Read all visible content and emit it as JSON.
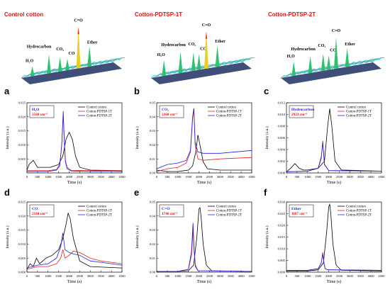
{
  "top_panels": [
    {
      "title": "Control cotton",
      "peaks": [
        "H₂O",
        "Hydrocarbon",
        "CO₂",
        "CO",
        "C=O",
        "Ether"
      ]
    },
    {
      "title": "Cotton-PDTSP-1T",
      "peaks": [
        "H₂O",
        "Hydrocarbon",
        "CO₂",
        "CO",
        "C=O",
        "Ether"
      ]
    },
    {
      "title": "Cotton-PDTSP-2T",
      "peaks": [
        "H₂O",
        "Hydrocarbon",
        "CO₂",
        "CO",
        "C=O",
        "Ether"
      ]
    }
  ],
  "panel_letters": [
    "a",
    "b",
    "c",
    "d",
    "e",
    "f"
  ],
  "colors": {
    "control": "#000000",
    "pdtsp1t": "#e02020",
    "pdtsp2t": "#1e1ee0",
    "title_red": "#e01010"
  },
  "chart_data": [
    {
      "type": "line",
      "annotation": "H₂O",
      "annotation2": "3568 cm⁻¹",
      "xlabel": "Time (s)",
      "ylabel": "Intensity (a.u.)",
      "xlim": [
        0,
        4500
      ],
      "ylim": [
        0,
        0.025
      ],
      "xticks": [
        0,
        500,
        1000,
        1500,
        2000,
        2500,
        3000,
        3500,
        4000,
        4500
      ],
      "yticks": [
        0.005,
        0.01,
        0.015,
        0.02,
        0.025
      ],
      "yticklabels": [
        "0.005",
        "0.010",
        "0.015",
        "0.020",
        "0.025"
      ],
      "series": [
        {
          "name": "Control cotton",
          "x": [
            0,
            100,
            300,
            500,
            700,
            900,
            1100,
            1300,
            1500,
            1700,
            1850,
            2000,
            2150,
            2300,
            2500,
            3000,
            4500
          ],
          "y": [
            0.001,
            0.003,
            0.0045,
            0.002,
            0.002,
            0.002,
            0.002,
            0.0025,
            0.003,
            0.006,
            0.012,
            0.0145,
            0.012,
            0.006,
            0.002,
            0.001,
            0.0008
          ]
        },
        {
          "name": "Cotton-PDTSP-1T",
          "x": [
            0,
            1000,
            1400,
            1550,
            1650,
            1720,
            1770,
            1820,
            1900,
            2100,
            3000,
            4500
          ],
          "y": [
            0.0008,
            0.0008,
            0.0012,
            0.003,
            0.01,
            0.021,
            0.012,
            0.0045,
            0.002,
            0.0009,
            0.0008,
            0.0008
          ]
        },
        {
          "name": "Cotton-PDTSP-2T",
          "x": [
            0,
            1000,
            1400,
            1550,
            1650,
            1720,
            1770,
            1820,
            1900,
            2100,
            3000,
            4500
          ],
          "y": [
            0.0005,
            0.0005,
            0.001,
            0.0025,
            0.01,
            0.022,
            0.011,
            0.004,
            0.0015,
            0.0007,
            0.0005,
            0.0005
          ]
        }
      ]
    },
    {
      "type": "line",
      "annotation": "CO₂",
      "annotation2": "2360 cm⁻¹",
      "xlabel": "Time (s)",
      "ylabel": "Intensity (a.u.)",
      "xlim": [
        0,
        4500
      ],
      "ylim": [
        0,
        0.05
      ],
      "xticks": [
        0,
        500,
        1000,
        1500,
        2000,
        2500,
        3000,
        3500,
        4000,
        4500
      ],
      "yticks": [
        0.0,
        0.01,
        0.02,
        0.03,
        0.04,
        0.05
      ],
      "yticklabels": [
        "0.00",
        "0.01",
        "0.02",
        "0.03",
        "0.04",
        "0.05"
      ],
      "series": [
        {
          "name": "Control cotton",
          "x": [
            0,
            500,
            1000,
            1500,
            1700,
            1850,
            1950,
            2050,
            2200,
            2400,
            3000,
            4500
          ],
          "y": [
            0.002,
            0.001,
            0.001,
            0.002,
            0.005,
            0.015,
            0.027,
            0.02,
            0.008,
            0.003,
            0.002,
            0.002
          ]
        },
        {
          "name": "Cotton-PDTSP-1T",
          "x": [
            0,
            500,
            1000,
            1400,
            1600,
            1700,
            1760,
            1820,
            1950,
            2200,
            3000,
            4500
          ],
          "y": [
            0.001,
            0.003,
            0.004,
            0.007,
            0.015,
            0.038,
            0.046,
            0.02,
            0.01,
            0.009,
            0.01,
            0.011
          ]
        },
        {
          "name": "Cotton-PDTSP-2T",
          "x": [
            0,
            500,
            1000,
            1400,
            1600,
            1700,
            1760,
            1820,
            1950,
            2200,
            3000,
            4500
          ],
          "y": [
            0.003,
            0.006,
            0.007,
            0.009,
            0.016,
            0.04,
            0.046,
            0.022,
            0.015,
            0.014,
            0.014,
            0.016
          ]
        }
      ]
    },
    {
      "type": "line",
      "annotation": "Hydrocarbon",
      "annotation2": "2923 cm⁻¹",
      "xlabel": "Time (s)",
      "ylabel": "Intensity (a.u.)",
      "xlim": [
        0,
        4500
      ],
      "ylim": [
        0,
        0.012
      ],
      "xticks": [
        0,
        500,
        1000,
        1500,
        2000,
        2500,
        3000,
        3500,
        4000,
        4500
      ],
      "yticks": [
        0.0,
        0.002,
        0.004,
        0.006,
        0.008,
        0.01,
        0.012
      ],
      "yticklabels": [
        "0.000",
        "0.002",
        "0.004",
        "0.006",
        "0.008",
        "0.010",
        "0.012"
      ],
      "series": [
        {
          "name": "Control cotton",
          "x": [
            0,
            200,
            400,
            600,
            800,
            1000,
            1500,
            1800,
            1950,
            2050,
            2150,
            2300,
            2600,
            4500
          ],
          "y": [
            0.0002,
            0.0008,
            0.0016,
            0.0008,
            0.0005,
            0.0005,
            0.0008,
            0.002,
            0.008,
            0.011,
            0.008,
            0.002,
            0.0005,
            0.0003
          ]
        },
        {
          "name": "Cotton-PDTSP-1T",
          "x": [
            0,
            1000,
            1500,
            1650,
            1720,
            1800,
            2000,
            4500
          ],
          "y": [
            0.0002,
            0.0003,
            0.0008,
            0.0025,
            0.0055,
            0.0015,
            0.0004,
            0.0003
          ]
        },
        {
          "name": "Cotton-PDTSP-2T",
          "x": [
            0,
            1000,
            1500,
            1650,
            1720,
            1800,
            2000,
            4500
          ],
          "y": [
            0.0002,
            0.0003,
            0.0008,
            0.0028,
            0.0052,
            0.0014,
            0.0004,
            0.0003
          ]
        }
      ]
    },
    {
      "type": "line",
      "annotation": "CO",
      "annotation2": "2184 cm⁻¹",
      "xlabel": "Time (s)",
      "ylabel": "Intensity (a.u.)",
      "xlim": [
        0,
        4500
      ],
      "ylim": [
        0,
        0.025
      ],
      "xticks": [
        0,
        500,
        1000,
        1500,
        2000,
        2500,
        3000,
        3500,
        4000,
        4500
      ],
      "yticks": [
        0.0,
        0.005,
        0.01,
        0.015,
        0.02,
        0.025
      ],
      "yticklabels": [
        "0.000",
        "0.005",
        "0.010",
        "0.015",
        "0.020",
        "0.025"
      ],
      "series": [
        {
          "name": "Control cotton",
          "x": [
            0,
            150,
            300,
            450,
            600,
            900,
            1200,
            1500,
            1700,
            1850,
            1950,
            2050,
            2200,
            2500,
            3000,
            4500
          ],
          "y": [
            0.001,
            0.003,
            0.002,
            0.005,
            0.003,
            0.005,
            0.006,
            0.008,
            0.012,
            0.017,
            0.021,
            0.019,
            0.012,
            0.004,
            0.002,
            0.0015
          ]
        },
        {
          "name": "Cotton-PDTSP-1T",
          "x": [
            0,
            500,
            1000,
            1400,
            1600,
            1700,
            1800,
            2000,
            2200,
            2500,
            3000,
            3500,
            4000,
            4500
          ],
          "y": [
            0.001,
            0.002,
            0.002,
            0.003,
            0.005,
            0.008,
            0.005,
            0.006,
            0.0075,
            0.007,
            0.005,
            0.004,
            0.0035,
            0.003
          ]
        },
        {
          "name": "Cotton-PDTSP-2T",
          "x": [
            0,
            500,
            1000,
            1400,
            1600,
            1700,
            1800,
            2000,
            2200,
            2500,
            3000,
            3500,
            4000,
            4500
          ],
          "y": [
            0.0015,
            0.0025,
            0.003,
            0.005,
            0.009,
            0.014,
            0.008,
            0.007,
            0.0065,
            0.006,
            0.004,
            0.0035,
            0.003,
            0.0025
          ]
        }
      ]
    },
    {
      "type": "line",
      "annotation": "C=O",
      "annotation2": "1746 cm⁻¹",
      "xlabel": "Time (s)",
      "ylabel": "Intensity (a.u.)",
      "xlim": [
        0,
        4500
      ],
      "ylim": [
        0,
        0.05
      ],
      "xticks": [
        0,
        500,
        1000,
        1500,
        2000,
        2500,
        3000,
        3500,
        4000,
        4500
      ],
      "yticks": [
        0.0,
        0.01,
        0.02,
        0.03,
        0.04,
        0.05
      ],
      "yticklabels": [
        "0.00",
        "0.01",
        "0.02",
        "0.03",
        "0.04",
        "0.05"
      ],
      "series": [
        {
          "name": "Control cotton",
          "x": [
            0,
            1000,
            1500,
            1750,
            1900,
            2000,
            2050,
            2100,
            2200,
            2350,
            2600,
            4500
          ],
          "y": [
            0.0005,
            0.0005,
            0.001,
            0.005,
            0.025,
            0.045,
            0.046,
            0.04,
            0.02,
            0.005,
            0.001,
            0.0005
          ]
        },
        {
          "name": "Cotton-PDTSP-1T",
          "x": [
            0,
            1000,
            1500,
            1650,
            1720,
            1770,
            1830,
            1950,
            4500
          ],
          "y": [
            0.0005,
            0.0005,
            0.002,
            0.012,
            0.03,
            0.015,
            0.004,
            0.001,
            0.0005
          ]
        },
        {
          "name": "Cotton-PDTSP-2T",
          "x": [
            0,
            1000,
            1500,
            1650,
            1720,
            1770,
            1830,
            1950,
            4500
          ],
          "y": [
            0.0005,
            0.0005,
            0.002,
            0.015,
            0.035,
            0.017,
            0.005,
            0.001,
            0.0005
          ]
        }
      ]
    },
    {
      "type": "line",
      "annotation": "Ether",
      "annotation2": "1107 cm⁻¹",
      "xlabel": "Time (s)",
      "ylabel": "Intensity (a.u.)",
      "xlim": [
        0,
        4500
      ],
      "ylim": [
        0,
        0.03
      ],
      "xticks": [
        0,
        500,
        1000,
        1500,
        2000,
        2500,
        3000,
        3500,
        4000,
        4500
      ],
      "yticks": [
        0.0,
        0.005,
        0.01,
        0.015,
        0.02,
        0.025,
        0.03
      ],
      "yticklabels": [
        "0.000",
        "0.005",
        "0.010",
        "0.015",
        "0.020",
        "0.025",
        "0.030"
      ],
      "series": [
        {
          "name": "Control cotton",
          "x": [
            0,
            1000,
            1500,
            1750,
            1900,
            2000,
            2050,
            2100,
            2200,
            2350,
            2600,
            4500
          ],
          "y": [
            0.0005,
            0.0005,
            0.001,
            0.004,
            0.017,
            0.028,
            0.029,
            0.025,
            0.012,
            0.003,
            0.0008,
            0.0005
          ]
        },
        {
          "name": "Cotton-PDTSP-1T",
          "x": [
            0,
            1000,
            1500,
            1650,
            1720,
            1770,
            1830,
            1950,
            4500
          ],
          "y": [
            0.0008,
            0.0008,
            0.0015,
            0.004,
            0.0085,
            0.0045,
            0.0015,
            0.001,
            0.0008
          ]
        },
        {
          "name": "Cotton-PDTSP-2T",
          "x": [
            0,
            1000,
            1500,
            1650,
            1720,
            1770,
            1830,
            1950,
            4500
          ],
          "y": [
            0.0008,
            0.0008,
            0.0015,
            0.004,
            0.0078,
            0.004,
            0.0015,
            0.001,
            0.0008
          ]
        }
      ]
    }
  ]
}
